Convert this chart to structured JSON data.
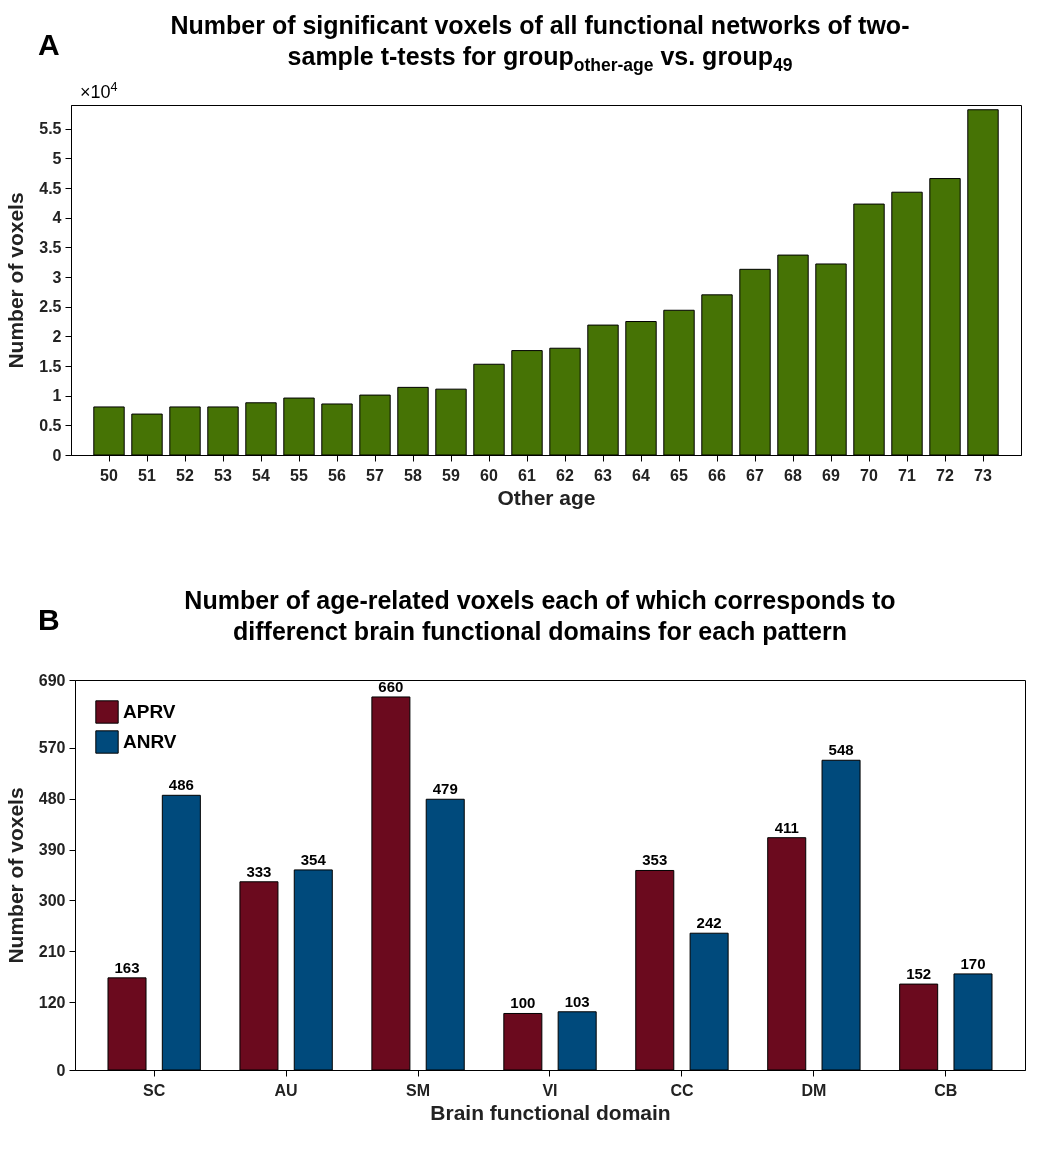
{
  "chart_data": [
    {
      "type": "bar",
      "title": "Number of significant voxels of all functional networks of two-sample t-tests for  group$_{other-age}$ vs. group$_{49}$",
      "xlabel": "Other age",
      "ylabel": "Number of voxels",
      "annotations": [
        "A",
        "×10$^{4}$"
      ],
      "categories": [
        "50",
        "51",
        "52",
        "53",
        "54",
        "55",
        "56",
        "57",
        "58",
        "59",
        "60",
        "61",
        "62",
        "63",
        "64",
        "65",
        "66",
        "67",
        "68",
        "69",
        "70",
        "71",
        "72",
        "73"
      ],
      "values": [
        0.81,
        0.69,
        0.81,
        0.81,
        0.88,
        0.96,
        0.86,
        1.01,
        1.14,
        1.11,
        1.53,
        1.76,
        1.8,
        2.19,
        2.25,
        2.44,
        2.7,
        3.13,
        3.37,
        3.22,
        4.23,
        4.43,
        4.66,
        5.82
      ],
      "color": "#467305",
      "ylim": [
        0,
        5.9
      ],
      "yticks": [
        0,
        0.5,
        1,
        1.5,
        2,
        2.5,
        3,
        3.5,
        4,
        4.5,
        5,
        5.5
      ],
      "grid": false,
      "legend": false
    },
    {
      "type": "bar",
      "title": "Number of age-related voxels each of which corresponds to differenct brain functional domains for each pattern",
      "xlabel": "Brain functional domain",
      "ylabel": "Number of voxels",
      "annotations": [
        "B"
      ],
      "categories": [
        "SC",
        "AU",
        "SM",
        "VI",
        "CC",
        "DM",
        "CB"
      ],
      "series": [
        {
          "name": "APRV",
          "color": "#6b0a1e",
          "values": [
            163,
            333,
            660,
            100,
            353,
            411,
            152
          ]
        },
        {
          "name": "ANRV",
          "color": "#004a7c",
          "values": [
            486,
            354,
            479,
            103,
            242,
            548,
            170
          ]
        }
      ],
      "ylim": [
        0,
        690
      ],
      "yticks": [
        0,
        120,
        210,
        300,
        390,
        480,
        570,
        690
      ],
      "grid": false,
      "legend": "top left",
      "data_labels": true
    }
  ]
}
